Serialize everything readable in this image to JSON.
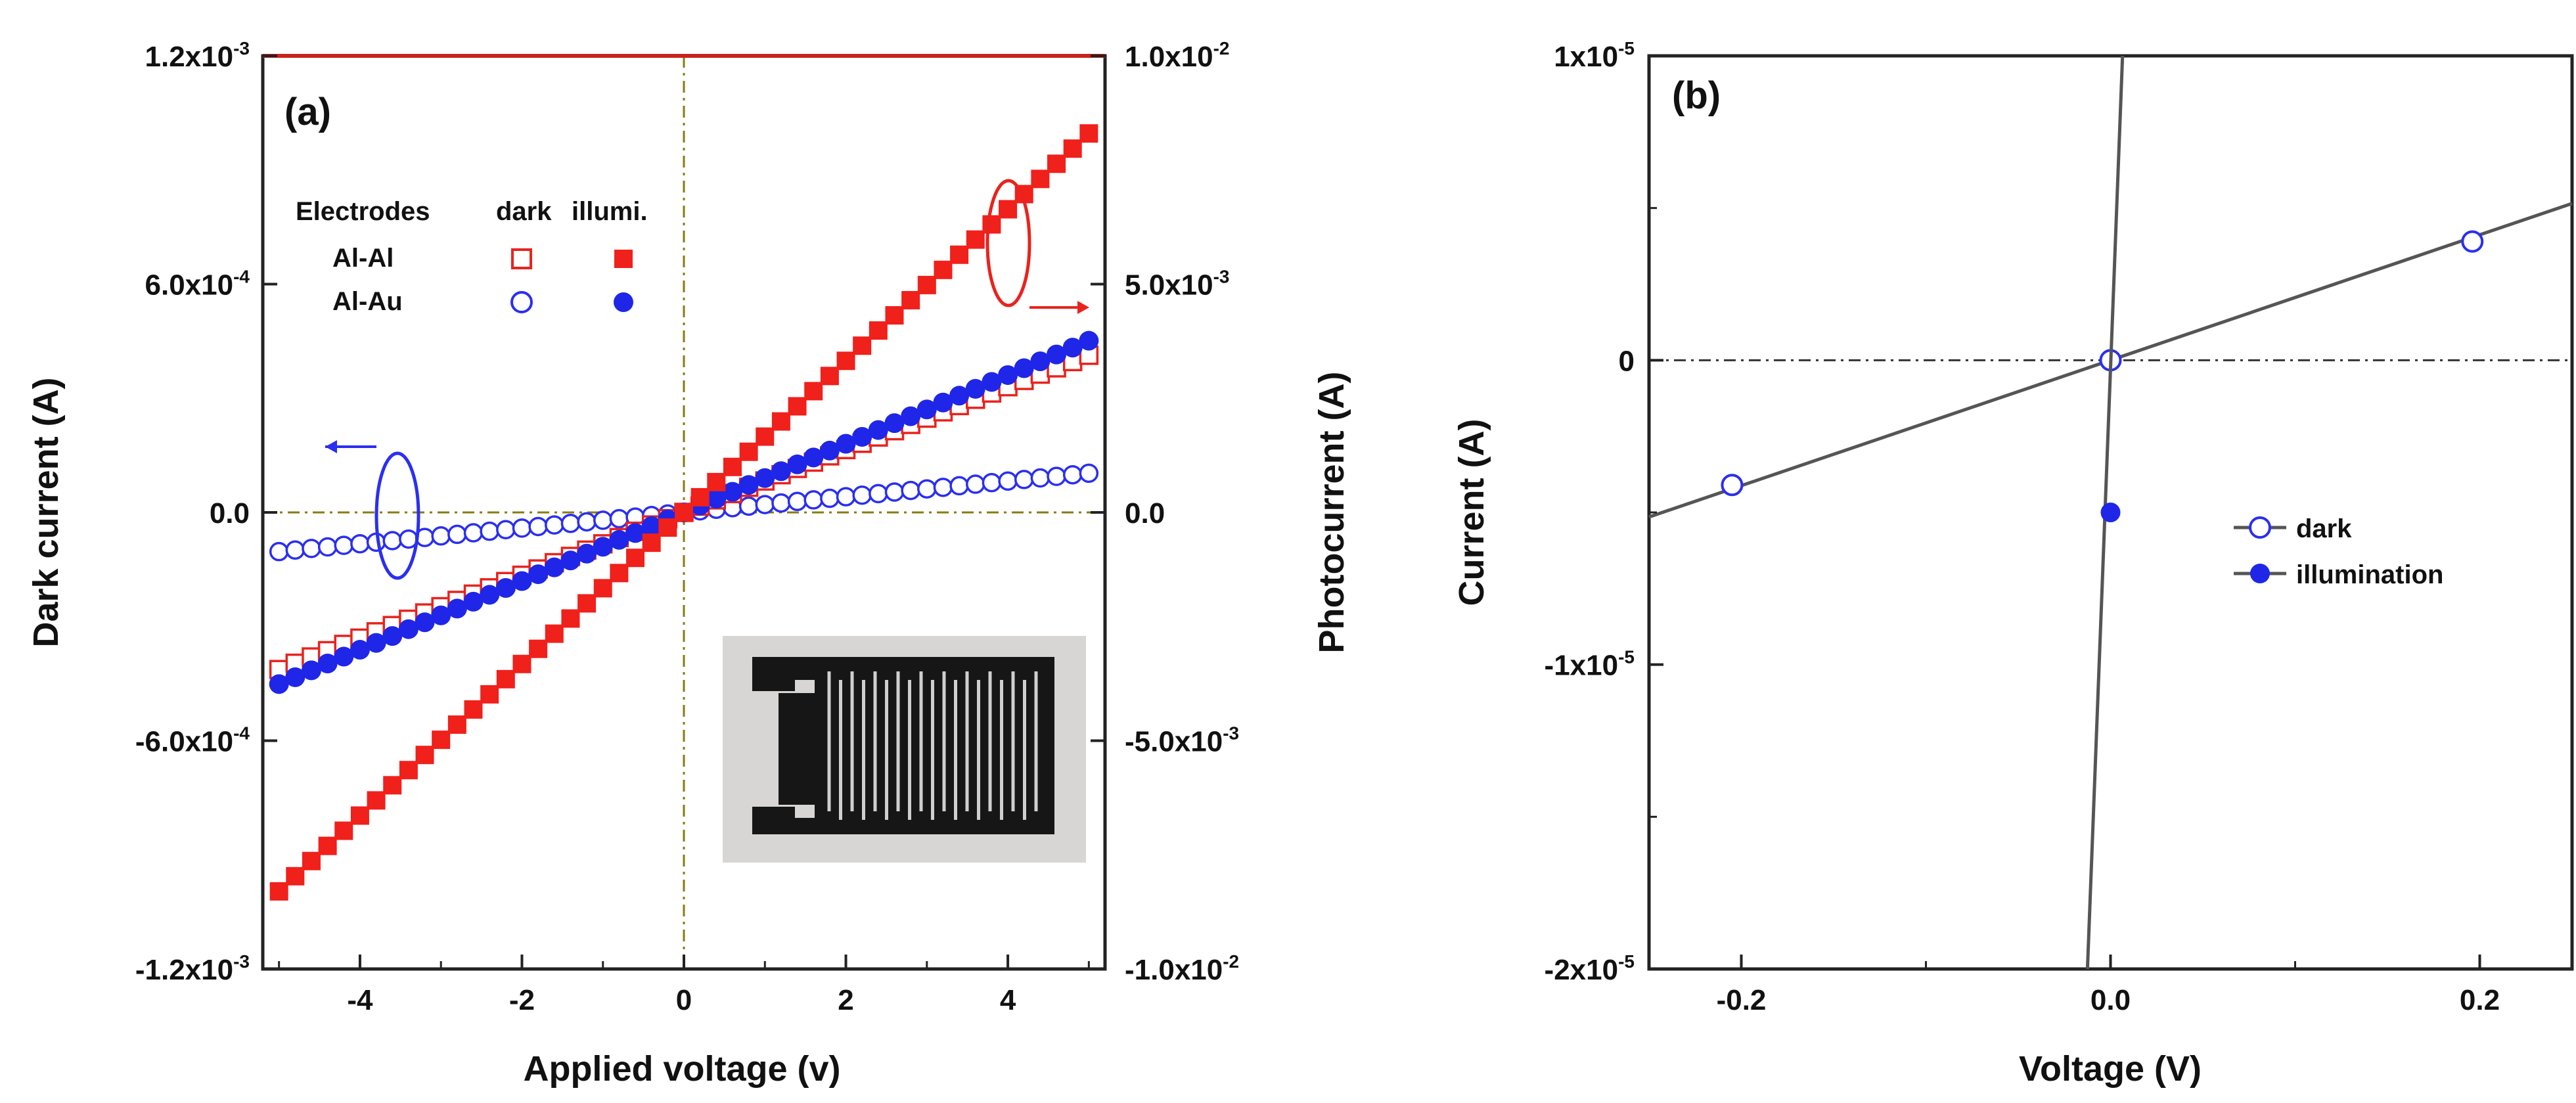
{
  "chart_data": [
    {
      "panel": "(a)",
      "type": "scatter",
      "xlabel": "Applied voltage (v)",
      "ylabel_left": "Dark current (A)",
      "ylabel_right": "Photocurrent (A)",
      "xlim": [
        -5.2,
        5.2
      ],
      "ylim_left": [
        -0.0012,
        0.0012
      ],
      "ylim_right": [
        -0.01,
        0.01
      ],
      "x_ticks": [
        {
          "value": -4,
          "label": "-4"
        },
        {
          "value": -2,
          "label": "-2"
        },
        {
          "value": 0,
          "label": "0"
        },
        {
          "value": 2,
          "label": "2"
        },
        {
          "value": 4,
          "label": "4"
        }
      ],
      "y_ticks_left": [
        {
          "value": 0.0012,
          "mant": "1.2x10",
          "exp": "-3"
        },
        {
          "value": 0.0006,
          "mant": "6.0x10",
          "exp": "-4"
        },
        {
          "value": 0,
          "mant": "0.0",
          "exp": ""
        },
        {
          "value": -0.0006,
          "mant": "-6.0x10",
          "exp": "-4"
        },
        {
          "value": -0.0012,
          "mant": "-1.2x10",
          "exp": "-3"
        }
      ],
      "y_ticks_right": [
        {
          "value": 0.01,
          "mant": "1.0x10",
          "exp": "-2"
        },
        {
          "value": 0.005,
          "mant": "5.0x10",
          "exp": "-3"
        },
        {
          "value": 0,
          "mant": "0.0",
          "exp": ""
        },
        {
          "value": -0.005,
          "mant": "-5.0x10",
          "exp": "-3"
        },
        {
          "value": -0.01,
          "mant": "-1.0x10",
          "exp": "-2"
        }
      ],
      "legend": {
        "header": [
          "Electrodes",
          "dark",
          "illumi."
        ],
        "rows": [
          "Al-Al",
          "Al-Au"
        ]
      },
      "series": [
        {
          "name": "Al-Al dark",
          "axis": "left",
          "marker": "open-square",
          "color": "#e8231e",
          "slope": 8.26e-05,
          "x_range": [
            -5,
            5
          ],
          "points": 51
        },
        {
          "name": "Al-Al illumi.",
          "axis": "right",
          "marker": "filled-square",
          "color": "#f0201b",
          "slope": 0.00166,
          "x_range": [
            -5,
            5
          ],
          "points": 51
        },
        {
          "name": "Al-Au dark",
          "axis": "left",
          "marker": "open-circle",
          "color": "#2a2ff0",
          "slope": 2.06e-05,
          "x_range": [
            -5,
            5
          ],
          "points": 51
        },
        {
          "name": "Al-Au illumi.",
          "axis": "right",
          "marker": "filled-circle",
          "color": "#1f26e8",
          "slope": 0.000752,
          "x_range": [
            -5,
            5
          ],
          "points": 51
        }
      ],
      "inset": "photo of interdigitated electrode device"
    },
    {
      "panel": "(b)",
      "type": "line",
      "xlabel": "Voltage (V)",
      "ylabel": "Current (A)",
      "xlim": [
        -0.25,
        0.25
      ],
      "ylim": [
        -2e-05,
        1e-05
      ],
      "x_ticks": [
        {
          "value": -0.2,
          "label": "-0.2"
        },
        {
          "value": 0,
          "label": "0.0"
        },
        {
          "value": 0.2,
          "label": "0.2"
        }
      ],
      "y_ticks": [
        {
          "value": 1e-05,
          "mant": "1x10",
          "exp": "-5"
        },
        {
          "value": 0,
          "mant": "0",
          "exp": ""
        },
        {
          "value": -1e-05,
          "mant": "-1x10",
          "exp": "-5"
        },
        {
          "value": -2e-05,
          "mant": "-2x10",
          "exp": "-5"
        }
      ],
      "series": [
        {
          "name": "dark",
          "marker": "open-circle",
          "color": "#2a2ff0",
          "line_color": "#555555",
          "slope": 2.06e-05,
          "points": [
            {
              "x": -0.205,
              "y": -4.1e-06
            },
            {
              "x": 0,
              "y": 0
            },
            {
              "x": 0.196,
              "y": 3.9e-06
            }
          ]
        },
        {
          "name": "illumination",
          "marker": "filled-circle",
          "color": "#1f26e8",
          "line_color": "#555555",
          "line": [
            {
              "x": -0.0125,
              "y": -2e-05
            },
            {
              "x": 0.0065,
              "y": 1e-05
            }
          ],
          "points": [
            {
              "x": 0,
              "y": -5e-06
            }
          ]
        }
      ]
    }
  ]
}
